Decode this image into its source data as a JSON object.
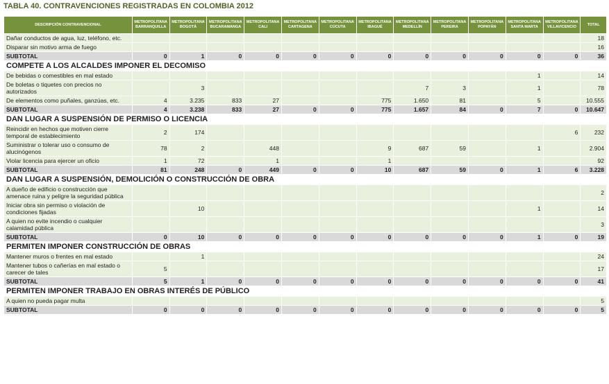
{
  "title": "TABLA 40. CONTRAVENCIONES REGISTRADAS EN COLOMBIA 2012",
  "header": {
    "description": "DESCRIPCIÓN CONTRAVENCIONAL",
    "columns": [
      "METROPOLITANA BARRANQUILLA",
      "METROPOLITANA BOGOTÁ",
      "METROPOLITANA BUCARAMANGA",
      "METROPOLITANA CALI",
      "METROPOLITANA CARTAGENA",
      "METROPOLITANA CÚCUTA",
      "METROPOLITANA IBAGUÉ",
      "METROPOLITANA MEDELLÍN",
      "METROPOLITANA PEREIRA",
      "METROPOLITANA POPAYÁN",
      "METROPOLITANA SANTA MARTA",
      "METROPOLITANA VILLAVICENCIO",
      "TOTAL"
    ]
  },
  "sections": [
    {
      "rows": [
        [
          "Dañar conductos de agua, luz, teléfono, etc.",
          null,
          null,
          null,
          null,
          null,
          null,
          null,
          null,
          null,
          null,
          null,
          null,
          "18"
        ],
        [
          "Disparar sin motivo arma de fuego",
          null,
          null,
          null,
          null,
          null,
          null,
          null,
          null,
          null,
          null,
          null,
          null,
          "16"
        ]
      ],
      "subtotal": [
        "SUBTOTAL",
        "0",
        "1",
        "0",
        "0",
        "0",
        "0",
        "0",
        "0",
        "0",
        "0",
        "0",
        "0",
        "36"
      ]
    },
    {
      "title": "COMPETE A LOS ALCALDES IMPONER EL DECOMISO",
      "rows": [
        [
          "De bebidas o comestibles en mal estado",
          null,
          null,
          null,
          null,
          null,
          null,
          null,
          null,
          null,
          null,
          "1",
          null,
          "14"
        ],
        [
          "De boletas o tiquetes con precios no autorizados",
          null,
          "3",
          null,
          null,
          null,
          null,
          null,
          "7",
          "3",
          null,
          "1",
          null,
          "78"
        ],
        [
          "De elementos como puñales, ganzúas, etc.",
          "4",
          "3.235",
          "833",
          "27",
          null,
          null,
          "775",
          "1.650",
          "81",
          null,
          "5",
          null,
          "10.555"
        ]
      ],
      "subtotal": [
        "SUBTOTAL",
        "4",
        "3.238",
        "833",
        "27",
        "0",
        "0",
        "775",
        "1.657",
        "84",
        "0",
        "7",
        "0",
        "10.647"
      ]
    },
    {
      "title": "DAN LUGAR A SUSPENSIÓN DE PERMISO O LICENCIA",
      "rows": [
        [
          "Reincidir en hechos que motiven cierre temporal de establecimiento",
          "2",
          "174",
          null,
          null,
          null,
          null,
          null,
          null,
          null,
          null,
          null,
          "6",
          "232"
        ],
        [
          "Suministrar o tolerar uso o consumo de alucinógenos",
          "78",
          "2",
          null,
          "448",
          null,
          null,
          "9",
          "687",
          "59",
          null,
          "1",
          null,
          "2.904"
        ],
        [
          "Violar licencia para ejercer un oficio",
          "1",
          "72",
          null,
          "1",
          null,
          null,
          "1",
          null,
          null,
          null,
          null,
          null,
          "92"
        ]
      ],
      "subtotal": [
        "SUBTOTAL",
        "81",
        "248",
        "0",
        "449",
        "0",
        "0",
        "10",
        "687",
        "59",
        "0",
        "1",
        "6",
        "3.228"
      ]
    },
    {
      "title": "DAN LUGAR A SUSPENSIÓN, DEMOLICIÓN O CONSTRUCCIÓN DE OBRA",
      "rows": [
        [
          "A dueño de edificio o construcción que amenace ruina y peligre la seguridad pública",
          null,
          null,
          null,
          null,
          null,
          null,
          null,
          null,
          null,
          null,
          null,
          null,
          "2"
        ],
        [
          "Iniciar obra sin permiso o violación de condiciones fijadas",
          null,
          "10",
          null,
          null,
          null,
          null,
          null,
          null,
          null,
          null,
          "1",
          null,
          "14"
        ],
        [
          "A quien no evite incendio o cualquier calamidad pública",
          null,
          null,
          null,
          null,
          null,
          null,
          null,
          null,
          null,
          null,
          null,
          null,
          "3"
        ]
      ],
      "subtotal": [
        "SUBTOTAL",
        "0",
        "10",
        "0",
        "0",
        "0",
        "0",
        "0",
        "0",
        "0",
        "0",
        "1",
        "0",
        "19"
      ]
    },
    {
      "title": "PERMITEN IMPONER CONSTRUCCIÓN DE OBRAS",
      "rows": [
        [
          "Mantener muros o frentes en mal estado",
          null,
          "1",
          null,
          null,
          null,
          null,
          null,
          null,
          null,
          null,
          null,
          null,
          "24"
        ],
        [
          "Mantener tubos o cañerías en mal estado o carecer de tales",
          "5",
          null,
          null,
          null,
          null,
          null,
          null,
          null,
          null,
          null,
          null,
          null,
          "17"
        ]
      ],
      "subtotal": [
        "SUBTOTAL",
        "5",
        "1",
        "0",
        "0",
        "0",
        "0",
        "0",
        "0",
        "0",
        "0",
        "0",
        "0",
        "41"
      ]
    },
    {
      "title": "PERMITEN IMPONER TRABAJO EN OBRAS INTERÉS DE PÚBLICO",
      "rows": [
        [
          "A quien no pueda pagar multa",
          null,
          null,
          null,
          null,
          null,
          null,
          null,
          null,
          null,
          null,
          null,
          null,
          "5"
        ]
      ],
      "subtotal": [
        "SUBTOTAL",
        "0",
        "0",
        "0",
        "0",
        "0",
        "0",
        "0",
        "0",
        "0",
        "0",
        "0",
        "0",
        "5"
      ]
    }
  ]
}
